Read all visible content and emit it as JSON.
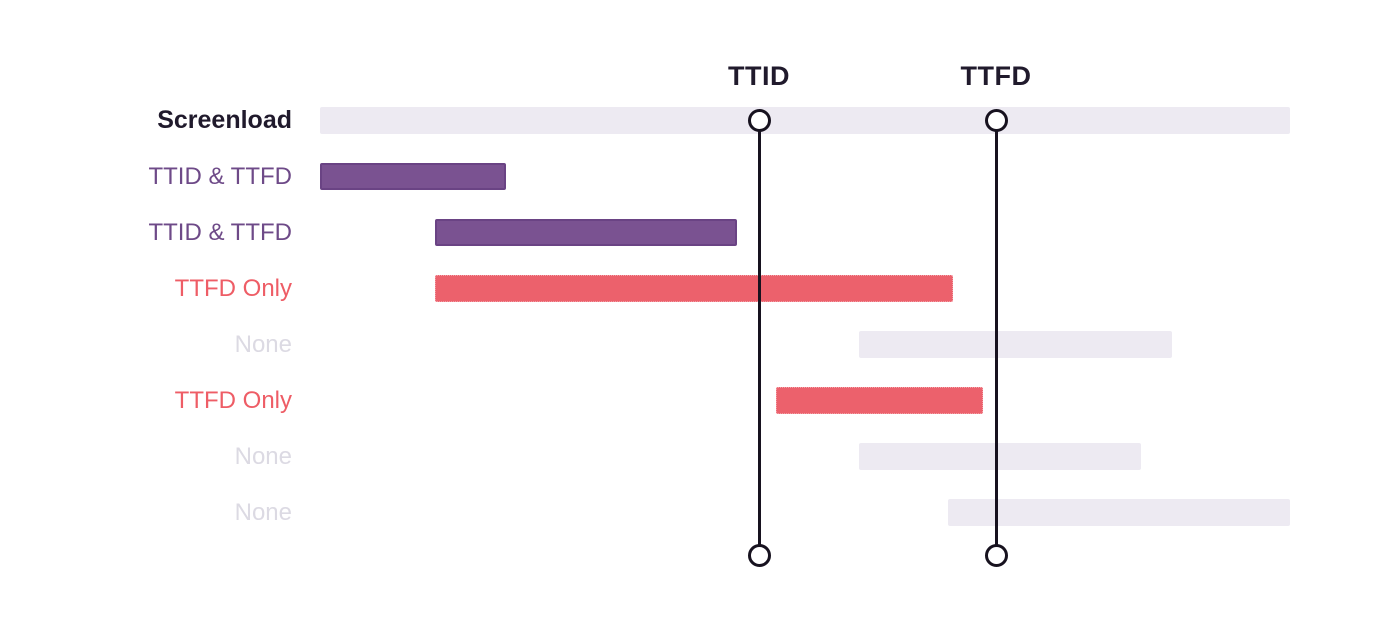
{
  "chart_data": {
    "type": "gantt",
    "title": "",
    "unit": "px-relative-to-screenload-start",
    "axis_range": [
      0,
      970
    ],
    "grid": false,
    "markers": [
      {
        "name": "TTID",
        "position": 439
      },
      {
        "name": "TTFD",
        "position": 676
      }
    ],
    "rows": [
      {
        "label": "Screenload",
        "kind": "screenload",
        "span": [
          0,
          970
        ]
      },
      {
        "label": "TTID & TTFD",
        "kind": "ttid-ttfd",
        "span": [
          0,
          186
        ]
      },
      {
        "label": "TTID & TTFD",
        "kind": "ttid-ttfd",
        "span": [
          115,
          417
        ]
      },
      {
        "label": "TTFD Only",
        "kind": "ttfd-only",
        "span": [
          115,
          633
        ]
      },
      {
        "label": "None",
        "kind": "none",
        "span": [
          539,
          852
        ]
      },
      {
        "label": "TTFD Only",
        "kind": "ttfd-only",
        "span": [
          456,
          663
        ]
      },
      {
        "label": "None",
        "kind": "none",
        "span": [
          539,
          821
        ]
      },
      {
        "label": "None",
        "kind": "none",
        "span": [
          628,
          970
        ]
      }
    ]
  },
  "colors": {
    "background": "#ffffff",
    "screenload_bar": "#edeaf2",
    "none_bar": "#edeaf2",
    "ttid_ttfd_bar": "#7a5291",
    "ttid_ttfd_bar_border": "#6a4384",
    "ttfd_only_bar": "#ec616c",
    "ttfd_only_bar_border": "#f4a2a9",
    "screenload_label": "#201a2c",
    "ttid_ttfd_label": "#6e4a88",
    "ttfd_only_label": "#ee5d66",
    "none_label": "#dcdae3",
    "marker_line": "#17121f",
    "marker_title": "#201a2c"
  }
}
